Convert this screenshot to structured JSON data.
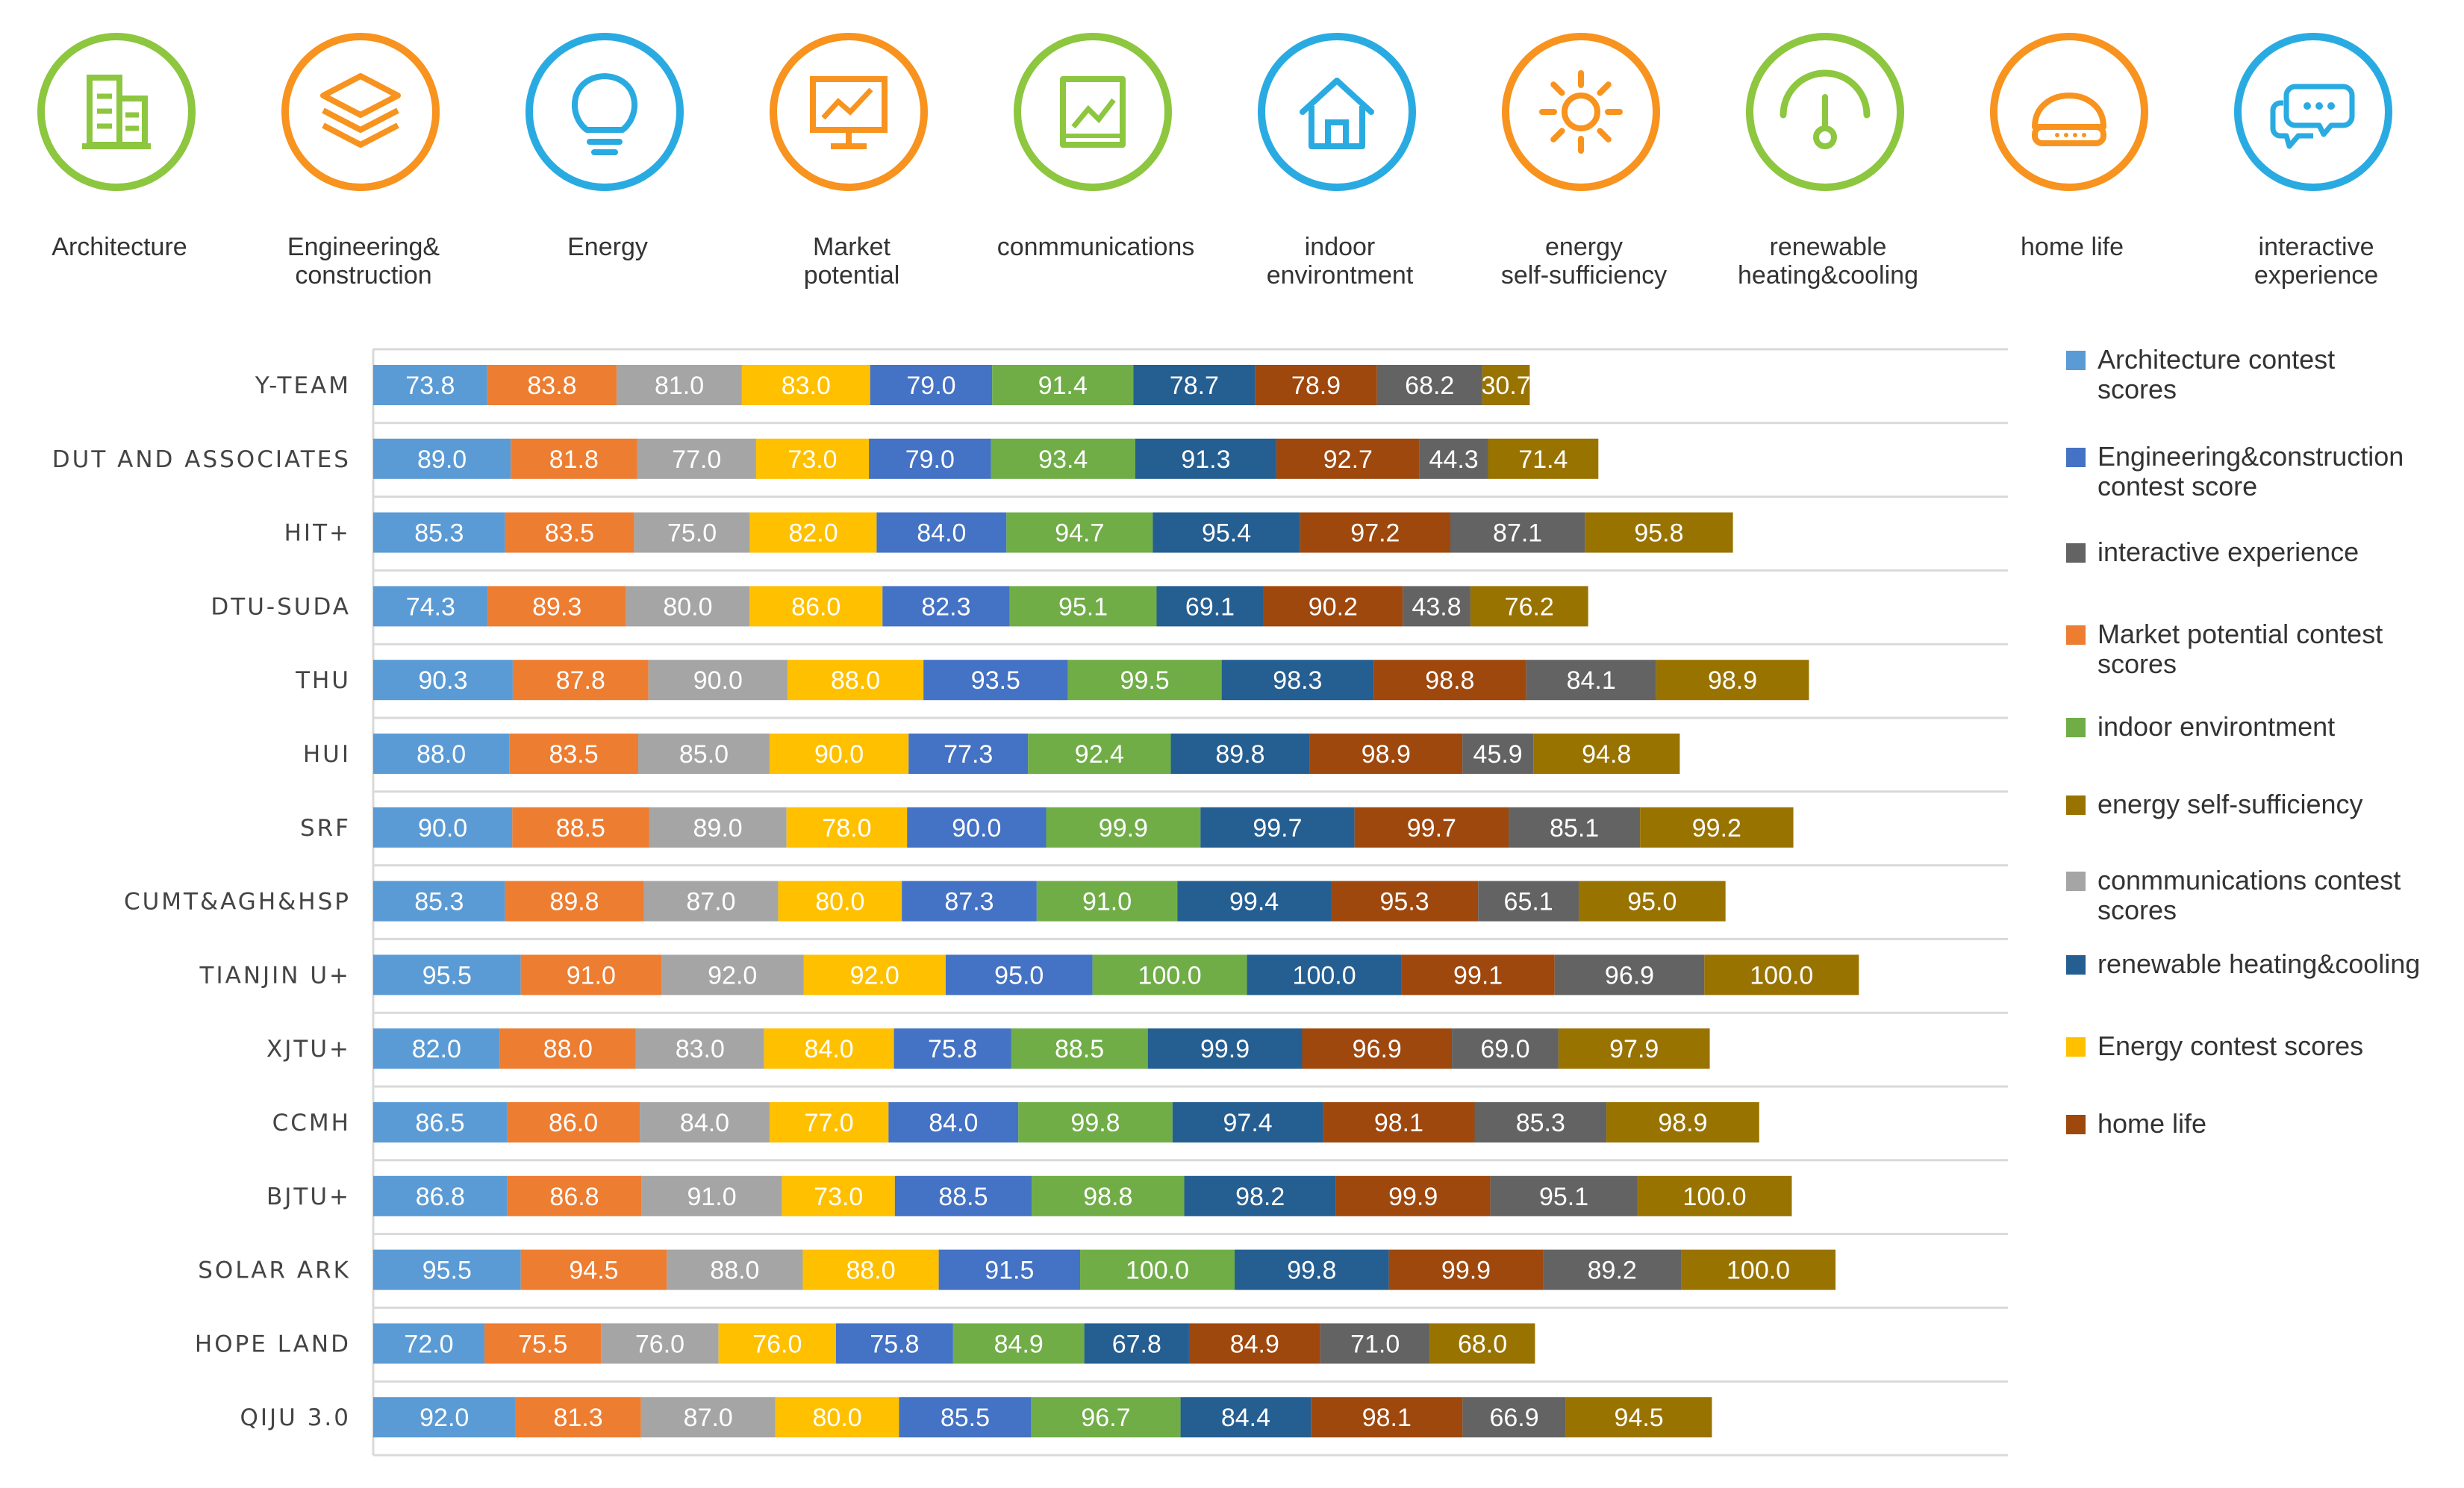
{
  "colors": {
    "architecture": "#5B9BD5",
    "engineering": "#ED7D31",
    "energy": "#A5A5A5",
    "market": "#FFC000",
    "communications": "#4472C4",
    "indoor": "#70AD47",
    "self_sufficiency": "#255E91",
    "renewable": "#9E480E",
    "home_life": "#636363",
    "interactive": "#997300"
  },
  "header": {
    "categories": [
      {
        "label": "Architecture",
        "icon": "building-icon",
        "ring": "#8DC63F"
      },
      {
        "label": "Engineering&\nconstruction",
        "icon": "layers-icon",
        "ring": "#F7931E"
      },
      {
        "label": "Energy",
        "icon": "lightbulb-icon",
        "ring": "#29ABE2"
      },
      {
        "label": "Market\npotential",
        "icon": "monitor-chart-icon",
        "ring": "#F7931E"
      },
      {
        "label": "conmmunications",
        "icon": "document-chart-icon",
        "ring": "#8DC63F"
      },
      {
        "label": "indoor\nenvirontment",
        "icon": "house-icon",
        "ring": "#29ABE2"
      },
      {
        "label": "energy\nself-sufficiency",
        "icon": "sun-icon",
        "ring": "#F7931E"
      },
      {
        "label": "renewable\nheating&cooling",
        "icon": "gauge-icon",
        "ring": "#8DC63F"
      },
      {
        "label": "home life",
        "icon": "dome-device-icon",
        "ring": "#F7931E"
      },
      {
        "label": "interactive\nexperience",
        "icon": "chat-bubbles-icon",
        "ring": "#29ABE2"
      }
    ]
  },
  "chart_data": {
    "type": "bar",
    "orientation": "horizontal",
    "stacked": true,
    "categories": [
      "Y-TEAM",
      "DUT AND ASSOCIATES",
      "HIT+",
      "DTU-SUDA",
      "THU",
      "HUI",
      "SRF",
      "CUMT&AGH&HSP",
      "TIANJIN U+",
      "XJTU+",
      "CCMH",
      "BJTU+",
      "SOLAR ARK",
      "HOPE LAND",
      "QIJU 3.0"
    ],
    "series": [
      {
        "key": "architecture",
        "values": [
          73.8,
          89.0,
          85.3,
          74.3,
          90.3,
          88.0,
          90.0,
          85.3,
          95.5,
          82.0,
          86.5,
          86.8,
          95.5,
          72.0,
          92.0
        ]
      },
      {
        "key": "engineering",
        "values": [
          83.8,
          81.8,
          83.5,
          89.3,
          87.8,
          83.5,
          88.5,
          89.8,
          91.0,
          88.0,
          86.0,
          86.8,
          94.5,
          75.5,
          81.3
        ]
      },
      {
        "key": "energy",
        "values": [
          81.0,
          77.0,
          75.0,
          80.0,
          90.0,
          85.0,
          89.0,
          87.0,
          92.0,
          83.0,
          84.0,
          91.0,
          88.0,
          76.0,
          87.0
        ]
      },
      {
        "key": "market",
        "values": [
          83.0,
          73.0,
          82.0,
          86.0,
          88.0,
          90.0,
          78.0,
          80.0,
          92.0,
          84.0,
          77.0,
          73.0,
          88.0,
          76.0,
          80.0
        ]
      },
      {
        "key": "communications",
        "values": [
          79.0,
          79.0,
          84.0,
          82.3,
          93.5,
          77.3,
          90.0,
          87.3,
          95.0,
          75.8,
          84.0,
          88.5,
          91.5,
          75.8,
          85.5
        ]
      },
      {
        "key": "indoor",
        "values": [
          91.4,
          93.4,
          94.7,
          95.1,
          99.5,
          92.4,
          99.9,
          91.0,
          100.0,
          88.5,
          99.8,
          98.8,
          100.0,
          84.9,
          96.7
        ]
      },
      {
        "key": "self_sufficiency",
        "values": [
          78.7,
          91.3,
          95.4,
          69.1,
          98.3,
          89.8,
          99.7,
          99.4,
          100.0,
          99.9,
          97.4,
          98.2,
          99.8,
          67.8,
          84.4
        ]
      },
      {
        "key": "renewable",
        "values": [
          78.9,
          92.7,
          97.2,
          90.2,
          98.8,
          98.9,
          99.7,
          95.3,
          99.1,
          96.9,
          98.1,
          99.9,
          99.9,
          84.9,
          98.1
        ]
      },
      {
        "key": "home_life",
        "values": [
          68.2,
          44.3,
          87.1,
          43.8,
          84.1,
          45.9,
          85.1,
          65.1,
          96.9,
          69.0,
          85.3,
          95.1,
          89.2,
          71.0,
          66.9
        ]
      },
      {
        "key": "interactive",
        "values": [
          30.7,
          71.4,
          95.8,
          76.2,
          98.9,
          94.8,
          99.2,
          95.0,
          100.0,
          97.9,
          98.9,
          100.0,
          100.0,
          68.0,
          94.5
        ]
      }
    ],
    "legend": {
      "placement": "right",
      "entries": [
        {
          "label": "Architecture contest\nscores",
          "color_key": "architecture"
        },
        {
          "label": "Engineering&construction\ncontest score",
          "color_key": "communications"
        },
        {
          "label": "interactive experience",
          "color_key": "home_life"
        },
        {
          "label": "Market potential contest\nscores",
          "color_key": "engineering"
        },
        {
          "label": "indoor environtment",
          "color_key": "indoor"
        },
        {
          "label": "energy self-sufficiency",
          "color_key": "interactive"
        },
        {
          "label": "conmmunications contest\nscores",
          "color_key": "energy"
        },
        {
          "label": "renewable heating&cooling",
          "color_key": "self_sufficiency"
        },
        {
          "label": "Energy contest scores",
          "color_key": "market"
        },
        {
          "label": "home life",
          "color_key": "renewable"
        }
      ]
    },
    "grid": true
  }
}
